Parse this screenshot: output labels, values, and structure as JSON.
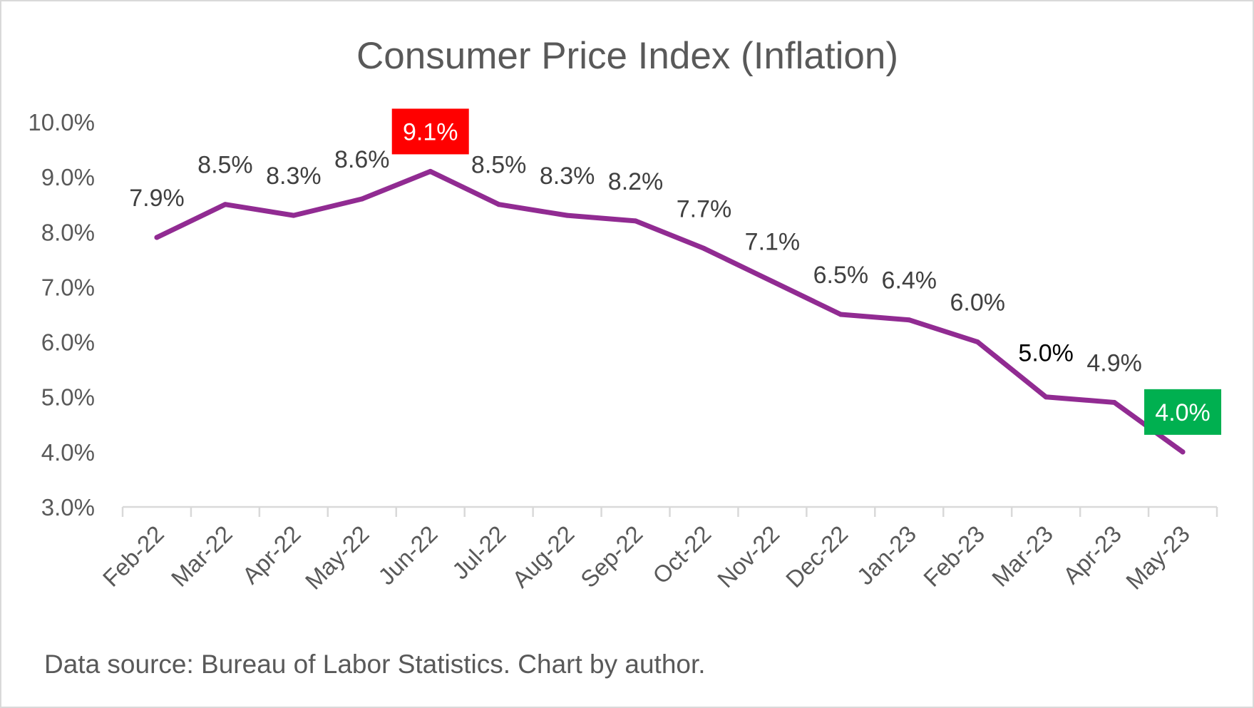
{
  "chart_data": {
    "type": "line",
    "title": "Consumer Price Index (Inflation)",
    "footnote": "Data source: Bureau of Labor Statistics. Chart by author.",
    "categories": [
      "Feb-22",
      "Mar-22",
      "Apr-22",
      "May-22",
      "Jun-22",
      "Jul-22",
      "Aug-22",
      "Sep-22",
      "Oct-22",
      "Nov-22",
      "Dec-22",
      "Jan-23",
      "Feb-23",
      "Mar-23",
      "Apr-23",
      "May-23"
    ],
    "values": [
      7.9,
      8.5,
      8.3,
      8.6,
      9.1,
      8.5,
      8.3,
      8.2,
      7.7,
      7.1,
      6.5,
      6.4,
      6.0,
      5.0,
      4.9,
      4.0
    ],
    "data_labels": [
      "7.9%",
      "8.5%",
      "8.3%",
      "8.6%",
      "9.1%",
      "8.5%",
      "8.3%",
      "8.2%",
      "7.7%",
      "7.1%",
      "6.5%",
      "6.4%",
      "6.0%",
      "5.0%",
      "4.9%",
      "4.0%"
    ],
    "ylim": [
      3.0,
      10.0
    ],
    "y_ticks": [
      "3.0%",
      "4.0%",
      "5.0%",
      "6.0%",
      "7.0%",
      "8.0%",
      "9.0%",
      "10.0%"
    ],
    "grid": false,
    "legend": "none",
    "colors": {
      "line": "#912B92",
      "max_highlight": "#FF0000",
      "latest_highlight": "#00B050",
      "text": "#595959",
      "axis": "#D9D9D9"
    },
    "highlights": {
      "max_index": 4,
      "latest_index": 15
    }
  }
}
